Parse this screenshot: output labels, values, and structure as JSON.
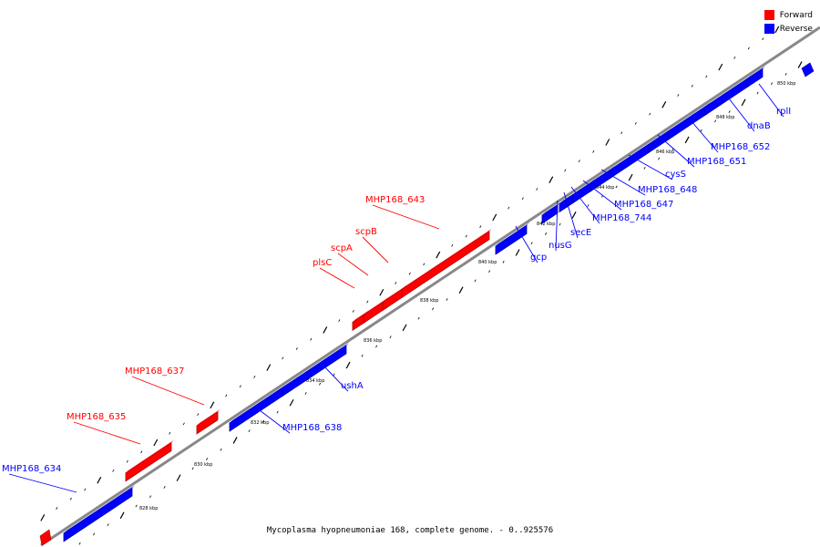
{
  "title": "Mycoplasma hyopneumoniae 168, complete genome. - 0..925576",
  "legend": [
    {
      "label": "Forward",
      "color": "#ff0000"
    },
    {
      "label": "Reverse",
      "color": "#0000ff"
    }
  ],
  "colors": {
    "forward": "#ff0000",
    "reverse": "#0000ff",
    "backbone": "#888888"
  },
  "kbp_labels": [
    "828 kbp",
    "830 kbp",
    "832 kbp",
    "834 kbp",
    "836 kbp",
    "838 kbp",
    "840 kbp",
    "842 kbp",
    "844 kbp",
    "846 kbp",
    "848 kbp",
    "850 kbp"
  ],
  "genes": [
    {
      "name": "MHP168_634",
      "strand": "reverse"
    },
    {
      "name": "MHP168_635",
      "strand": "forward"
    },
    {
      "name": "MHP168_637",
      "strand": "forward"
    },
    {
      "name": "MHP168_638",
      "strand": "reverse"
    },
    {
      "name": "ushA",
      "strand": "reverse"
    },
    {
      "name": "plsC",
      "strand": "forward"
    },
    {
      "name": "scpA",
      "strand": "forward"
    },
    {
      "name": "scpB",
      "strand": "forward"
    },
    {
      "name": "MHP168_643",
      "strand": "forward"
    },
    {
      "name": "gcp",
      "strand": "reverse"
    },
    {
      "name": "nusG",
      "strand": "reverse"
    },
    {
      "name": "secE",
      "strand": "reverse"
    },
    {
      "name": "MHP168_744",
      "strand": "reverse"
    },
    {
      "name": "MHP168_647",
      "strand": "reverse"
    },
    {
      "name": "MHP168_648",
      "strand": "reverse"
    },
    {
      "name": "cysS",
      "strand": "reverse"
    },
    {
      "name": "MHP168_651",
      "strand": "reverse"
    },
    {
      "name": "MHP168_652",
      "strand": "reverse"
    },
    {
      "name": "dnaB",
      "strand": "reverse"
    },
    {
      "name": "rplI",
      "strand": "reverse"
    }
  ]
}
